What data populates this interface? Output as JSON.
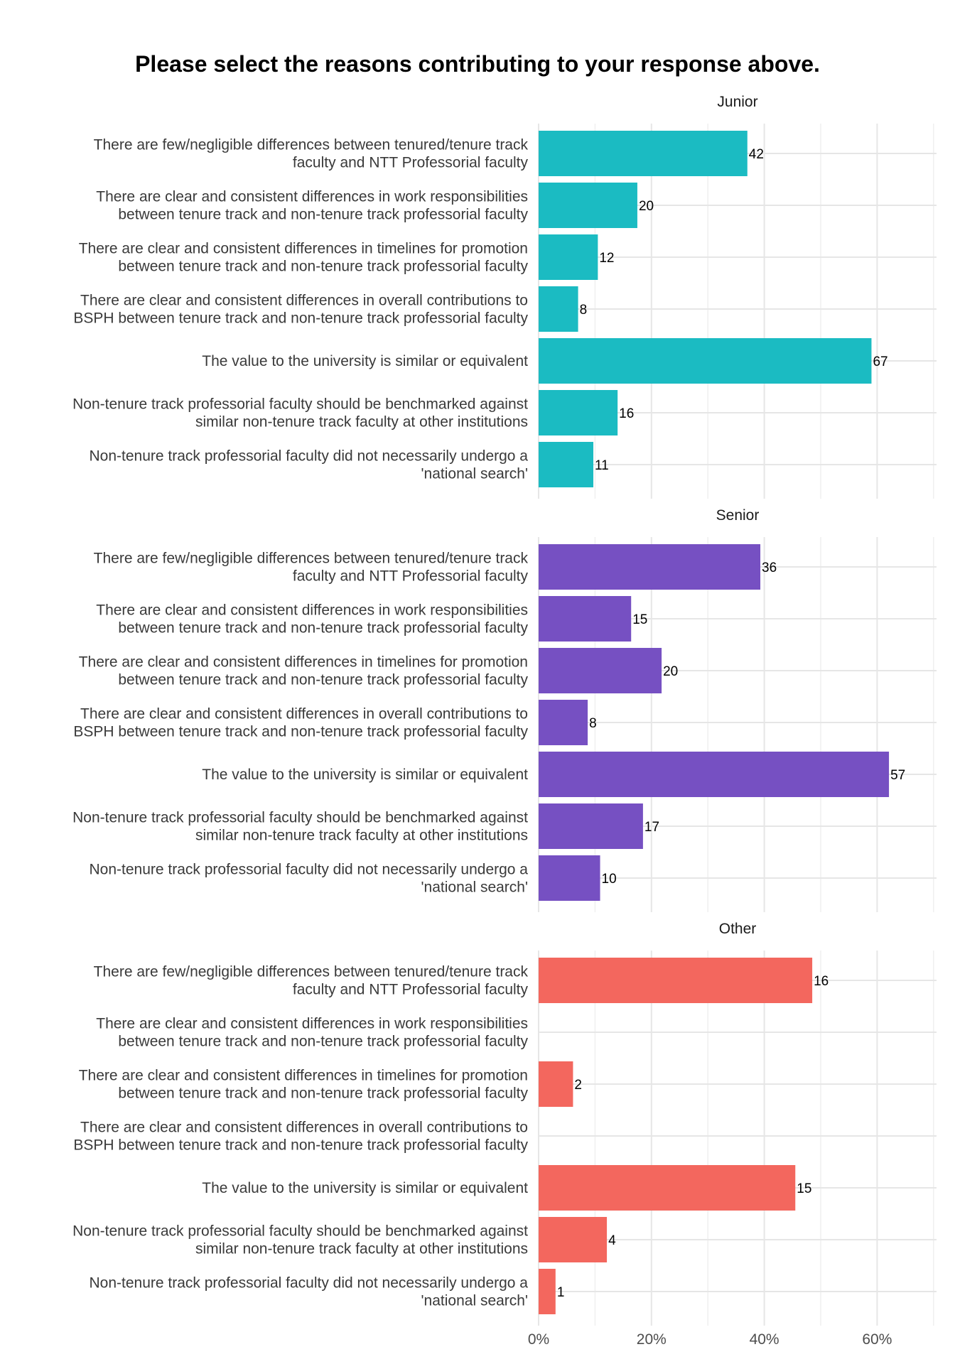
{
  "chart_data": {
    "type": "bar",
    "orientation": "horizontal",
    "title": "Please select the reasons contributing to your response above.",
    "categories": [
      "There are few/negligible differences between tenured/tenure track\nfaculty and NTT Professorial faculty",
      "There are clear and consistent differences in work responsibilities\nbetween tenure track and non-tenure track professorial faculty",
      "There are clear and consistent differences in timelines for promotion\nbetween tenure track and non-tenure track professorial faculty",
      "There are clear and consistent differences in overall contributions to\nBSPH between tenure track and non-tenure track professorial faculty",
      "The value to the university is similar or equivalent",
      "Non-tenure track professorial faculty should be benchmarked against\nsimilar non-tenure track faculty at other institutions",
      "Non-tenure track professorial faculty did not necessarily undergo a\n'national search'"
    ],
    "facets": [
      {
        "name": "Junior",
        "color": "#1bbbc2",
        "percent": [
          37,
          17.5,
          10.5,
          7,
          59,
          14,
          9.7
        ],
        "counts": [
          42,
          20,
          12,
          8,
          67,
          16,
          11
        ]
      },
      {
        "name": "Senior",
        "color": "#7650c2",
        "percent": [
          39.3,
          16.4,
          21.8,
          8.7,
          62.1,
          18.5,
          10.9
        ],
        "counts": [
          36,
          15,
          20,
          8,
          57,
          17,
          10
        ]
      },
      {
        "name": "Other",
        "color": "#f3675e",
        "percent": [
          48.5,
          0,
          6.1,
          0,
          45.5,
          12.1,
          3
        ],
        "counts": [
          16,
          null,
          2,
          null,
          15,
          4,
          1
        ]
      }
    ],
    "x_axis": {
      "ticks": [
        0,
        20,
        40,
        60
      ],
      "tick_labels": [
        "0%",
        "20%",
        "40%",
        "60%"
      ],
      "xlim": [
        0,
        71
      ]
    },
    "grid": true
  }
}
